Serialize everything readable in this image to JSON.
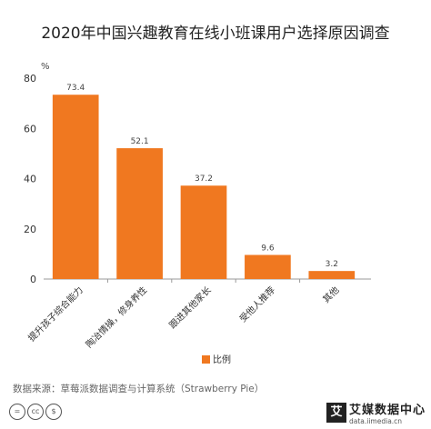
{
  "chart_data": {
    "type": "bar",
    "title": "2020年中国兴趣教育在线小班课用户选择原因调查",
    "ylabel": "%",
    "categories": [
      "提升孩子综合能力",
      "陶冶情操，修身养性",
      "跟进其他家长",
      "受他人推荐",
      "其他"
    ],
    "series": [
      {
        "name": "比例",
        "values": [
          73.4,
          52.1,
          37.2,
          9.6,
          3.2
        ],
        "color": "#f07820"
      }
    ],
    "ylim": [
      0,
      80
    ],
    "yticks": [
      0,
      20,
      40,
      60,
      80
    ],
    "legend": "bottom",
    "grid": false
  },
  "source": "数据来源：草莓派数据调查与计算系统（Strawberry Pie）",
  "brand": {
    "name": "艾媒数据中心",
    "url": "data.iimedia.cn",
    "logo": "艾"
  },
  "license_icons": [
    "=",
    "cc",
    "$"
  ]
}
